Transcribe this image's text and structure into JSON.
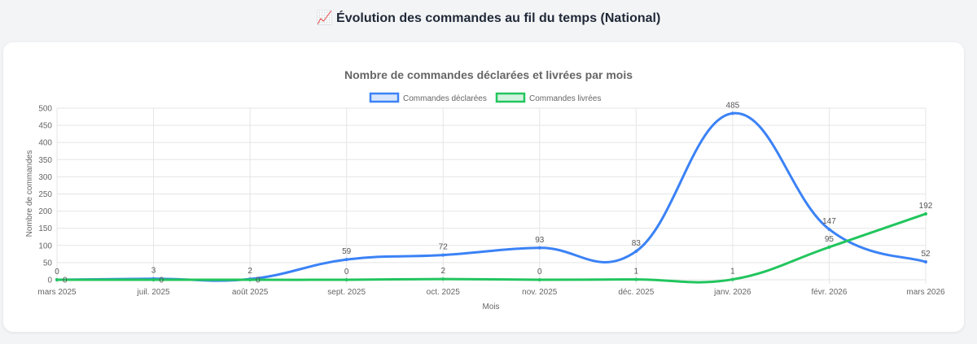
{
  "page_title": "📈 Évolution des commandes au fil du temps (National)",
  "chart_data": {
    "type": "line",
    "title": "Nombre de commandes déclarées et livrées par mois",
    "xlabel": "Mois",
    "ylabel": "Nombre de commandes",
    "ylim": [
      0,
      500
    ],
    "yticks": [
      0,
      50,
      100,
      150,
      200,
      250,
      300,
      350,
      400,
      450,
      500
    ],
    "grid": true,
    "legend_position": "top",
    "categories": [
      "mars 2025",
      "juil. 2025",
      "août 2025",
      "sept. 2025",
      "oct. 2025",
      "nov. 2025",
      "déc. 2025",
      "janv. 2026",
      "févr. 2026",
      "mars 2026"
    ],
    "series": [
      {
        "name": "Commandes déclarées",
        "color": "#3b82f6",
        "values": [
          0,
          3,
          2,
          59,
          72,
          93,
          83,
          485,
          147,
          52
        ]
      },
      {
        "name": "Commandes livrées",
        "color": "#22c55e",
        "values": [
          0,
          0,
          0,
          0,
          2,
          0,
          1,
          1,
          95,
          192
        ]
      }
    ]
  }
}
